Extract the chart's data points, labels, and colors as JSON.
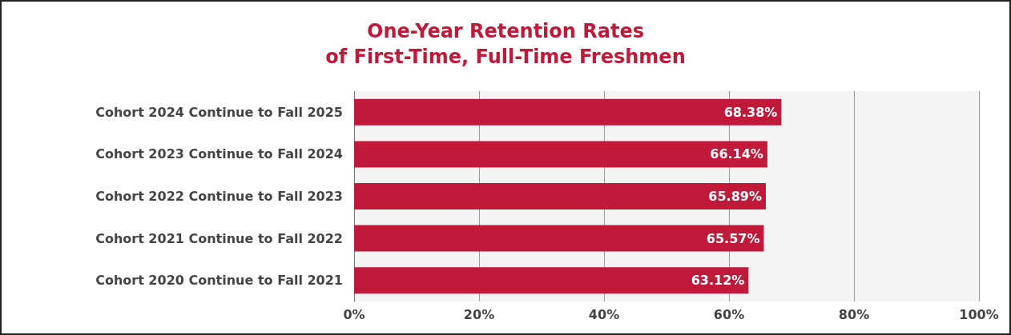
{
  "chart_data": {
    "type": "bar",
    "orientation": "horizontal",
    "title": "One-Year Retention Rates\nof First-Time, Full-Time Freshmen",
    "categories": [
      "Cohort 2024 Continue to Fall 2025",
      "Cohort 2023 Continue to Fall 2024",
      "Cohort 2022 Continue to Fall 2023",
      "Cohort 2021 Continue to Fall 2022",
      "Cohort 2020 Continue to Fall 2021"
    ],
    "values": [
      68.38,
      66.14,
      65.89,
      65.57,
      63.12
    ],
    "value_labels": [
      "68.38%",
      "66.14%",
      "65.89%",
      "65.57%",
      "63.12%"
    ],
    "color": "#c0193a",
    "xlim": [
      0,
      100
    ],
    "xticks": [
      {
        "value": 0,
        "label": "0%"
      },
      {
        "value": 20,
        "label": "20%"
      },
      {
        "value": 40,
        "label": "40%"
      },
      {
        "value": 60,
        "label": "60%"
      },
      {
        "value": 80,
        "label": "80%"
      },
      {
        "value": 100,
        "label": "100%"
      }
    ],
    "grid": "x"
  }
}
